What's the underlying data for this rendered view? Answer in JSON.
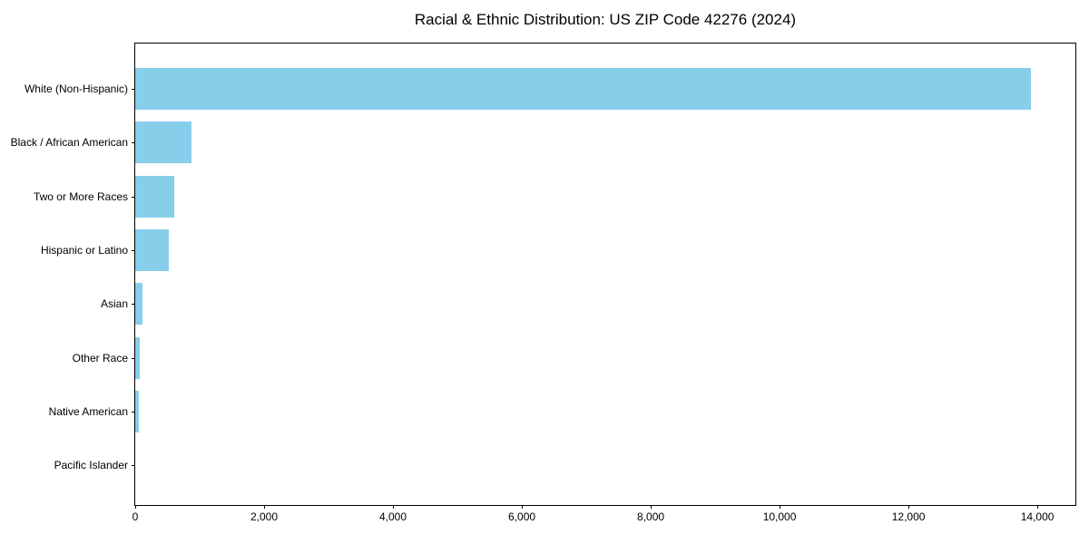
{
  "chart_data": {
    "type": "bar",
    "orientation": "horizontal",
    "title": "Racial & Ethnic Distribution: US ZIP Code 42276 (2024)",
    "categories": [
      "White (Non-Hispanic)",
      "Black / African American",
      "Two or More Races",
      "Hispanic or Latino",
      "Asian",
      "Other Race",
      "Native American",
      "Pacific Islander"
    ],
    "values": [
      13900,
      880,
      600,
      520,
      110,
      75,
      50,
      0
    ],
    "xlabel": "",
    "ylabel": "",
    "xlim": [
      0,
      14590
    ],
    "x_ticks": [
      0,
      2000,
      4000,
      6000,
      8000,
      10000,
      12000,
      14000
    ],
    "x_tick_labels": [
      "0",
      "2,000",
      "4,000",
      "6,000",
      "8,000",
      "10,000",
      "12,000",
      "14,000"
    ],
    "bar_color": "#87CEEB",
    "background_color": "#FFFFFF",
    "spine_color": "#000000",
    "text_color": "#000000",
    "grid": false,
    "legend_position": "none"
  }
}
